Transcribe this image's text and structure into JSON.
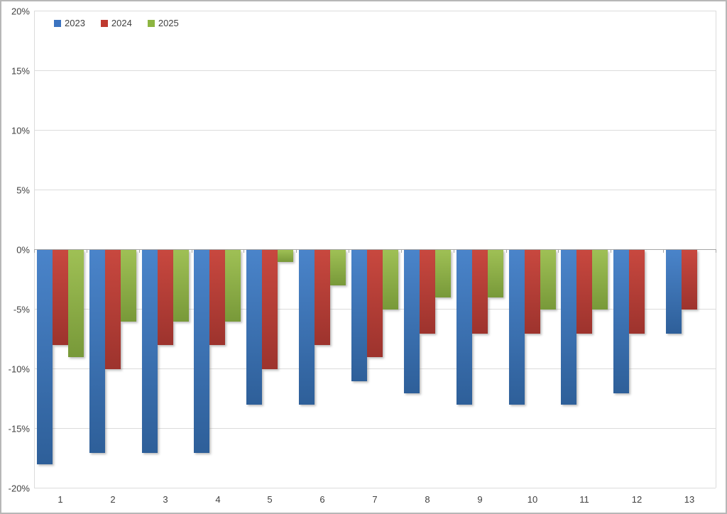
{
  "chart": {
    "background": "#ffffff",
    "border_color": "#b7b7b7",
    "gridline_color": "#dcdcdc",
    "axis_line_color": "#a6a6a6",
    "text_color": "#404040"
  },
  "chart_data": {
    "type": "bar",
    "title": "",
    "xlabel": "",
    "ylabel": "",
    "categories": [
      "1",
      "2",
      "3",
      "4",
      "5",
      "6",
      "7",
      "8",
      "9",
      "10",
      "11",
      "12",
      "13"
    ],
    "series": [
      {
        "name": "2023",
        "color": "#3b73c0",
        "fill_top": "#4a84ca",
        "fill_bottom": "#2e5f99",
        "values": [
          -18,
          -17,
          -17,
          -17,
          -13,
          -13,
          -11,
          -12,
          -13,
          -13,
          -13,
          -12,
          -7
        ]
      },
      {
        "name": "2024",
        "color": "#bf3a30",
        "fill_top": "#c8483f",
        "fill_bottom": "#9d332d",
        "values": [
          -8,
          -10,
          -8,
          -8,
          -10,
          -8,
          -9,
          -7,
          -7,
          -7,
          -7,
          -7,
          -5
        ]
      },
      {
        "name": "2025",
        "color": "#8db541",
        "fill_top": "#9fc055",
        "fill_bottom": "#789939",
        "values": [
          -9,
          -6,
          -6,
          -6,
          -1,
          -3,
          -5,
          -4,
          -4,
          -5,
          -5,
          null,
          null
        ]
      }
    ],
    "ylim": [
      -20,
      20
    ],
    "ytick_step": 5,
    "ytick_format": "{v}%",
    "ytick_labels": [
      "20%",
      "15%",
      "10%",
      "5%",
      "0%",
      "-5%",
      "-10%",
      "-15%",
      "-20%"
    ],
    "grid": true,
    "legend_position": "top-left",
    "legend_labels": [
      "2023",
      "2024",
      "2025"
    ]
  }
}
